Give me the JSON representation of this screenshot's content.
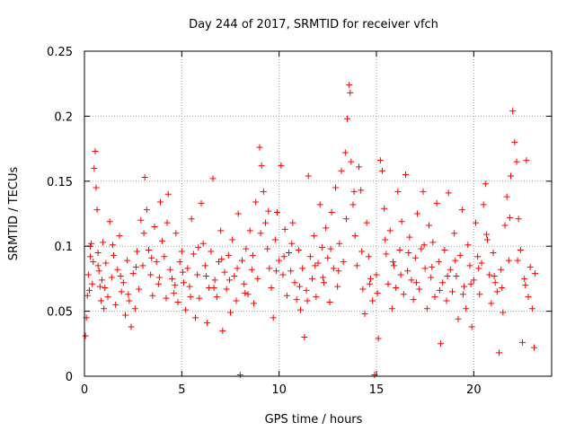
{
  "chart_data": {
    "type": "scatter",
    "title": "Day 244 of 2017, SRMTID for receiver vfch",
    "xlabel": "GPS time / hours",
    "ylabel": "SRMTID / TECUs",
    "xlim": [
      0,
      24
    ],
    "ylim": [
      0,
      0.25
    ],
    "xticks": [
      0,
      5,
      10,
      15,
      20
    ],
    "xtick_labels": [
      "0",
      "5",
      "10",
      "15",
      "20"
    ],
    "yticks": [
      0,
      0.05,
      0.1,
      0.15,
      0.2,
      0.25
    ],
    "ytick_labels": [
      "0",
      "0.05",
      "0.1",
      "0.15",
      "0.2",
      "0.25"
    ],
    "grid": true,
    "marker": "+",
    "color": "#ff0000",
    "series": [
      {
        "name": "SRMTID",
        "points": [
          [
            0.05,
            0.031
          ],
          [
            0.1,
            0.045
          ],
          [
            0.15,
            0.062
          ],
          [
            0.2,
            0.078
          ],
          [
            0.25,
            0.066
          ],
          [
            0.3,
            0.092
          ],
          [
            0.35,
            0.102
          ],
          [
            0.4,
            0.071
          ],
          [
            0.45,
            0.088
          ],
          [
            0.5,
            0.16
          ],
          [
            0.55,
            0.173
          ],
          [
            0.6,
            0.145
          ],
          [
            0.65,
            0.128
          ],
          [
            0.7,
            0.095
          ],
          [
            0.75,
            0.081
          ],
          [
            0.8,
            0.069
          ],
          [
            0.85,
            0.058
          ],
          [
            0.9,
            0.074
          ],
          [
            0.95,
            0.103
          ],
          [
            1.0,
            0.052
          ],
          [
            1.1,
            0.087
          ],
          [
            1.2,
            0.061
          ],
          [
            1.3,
            0.119
          ],
          [
            1.4,
            0.076
          ],
          [
            1.5,
            0.093
          ],
          [
            1.6,
            0.055
          ],
          [
            1.7,
            0.082
          ],
          [
            1.8,
            0.108
          ],
          [
            1.9,
            0.065
          ],
          [
            2.0,
            0.072
          ],
          [
            2.1,
            0.047
          ],
          [
            2.2,
            0.089
          ],
          [
            2.3,
            0.058
          ],
          [
            2.4,
            0.038
          ],
          [
            2.5,
            0.079
          ],
          [
            2.6,
            0.052
          ],
          [
            2.7,
            0.096
          ],
          [
            2.8,
            0.067
          ],
          [
            2.9,
            0.12
          ],
          [
            3.0,
            0.085
          ],
          [
            3.1,
            0.153
          ],
          [
            3.2,
            0.128
          ],
          [
            3.3,
            0.097
          ],
          [
            3.4,
            0.078
          ],
          [
            3.5,
            0.062
          ],
          [
            3.6,
            0.115
          ],
          [
            3.7,
            0.088
          ],
          [
            3.8,
            0.071
          ],
          [
            3.9,
            0.134
          ],
          [
            4.0,
            0.104
          ],
          [
            4.1,
            0.092
          ],
          [
            4.2,
            0.06
          ],
          [
            4.3,
            0.14
          ],
          [
            4.4,
            0.082
          ],
          [
            4.5,
            0.075
          ],
          [
            4.6,
            0.064
          ],
          [
            4.7,
            0.11
          ],
          [
            4.8,
            0.057
          ],
          [
            4.9,
            0.088
          ],
          [
            5.0,
            0.096
          ],
          [
            5.1,
            0.072
          ],
          [
            5.2,
            0.051
          ],
          [
            5.3,
            0.083
          ],
          [
            5.4,
            0.069
          ],
          [
            5.5,
            0.121
          ],
          [
            5.6,
            0.094
          ],
          [
            5.7,
            0.045
          ],
          [
            5.8,
            0.078
          ],
          [
            5.9,
            0.06
          ],
          [
            6.0,
            0.133
          ],
          [
            6.1,
            0.102
          ],
          [
            6.2,
            0.085
          ],
          [
            6.3,
            0.041
          ],
          [
            6.4,
            0.068
          ],
          [
            6.5,
            0.096
          ],
          [
            6.6,
            0.152
          ],
          [
            6.7,
            0.074
          ],
          [
            6.8,
            0.061
          ],
          [
            6.9,
            0.088
          ],
          [
            7.0,
            0.112
          ],
          [
            7.1,
            0.035
          ],
          [
            7.2,
            0.08
          ],
          [
            7.3,
            0.067
          ],
          [
            7.4,
            0.093
          ],
          [
            7.5,
            0.049
          ],
          [
            7.6,
            0.105
          ],
          [
            7.7,
            0.077
          ],
          [
            7.8,
            0.058
          ],
          [
            7.9,
            0.125
          ],
          [
            8.0,
            0.001
          ],
          [
            8.1,
            0.089
          ],
          [
            8.2,
            0.071
          ],
          [
            8.3,
            0.098
          ],
          [
            8.4,
            0.063
          ],
          [
            8.5,
            0.112
          ],
          [
            8.6,
            0.082
          ],
          [
            8.7,
            0.056
          ],
          [
            8.8,
            0.134
          ],
          [
            8.9,
            0.075
          ],
          [
            9.0,
            0.176
          ],
          [
            9.1,
            0.162
          ],
          [
            9.2,
            0.142
          ],
          [
            9.3,
            0.118
          ],
          [
            9.4,
            0.098
          ],
          [
            9.5,
            0.083
          ],
          [
            9.6,
            0.068
          ],
          [
            9.7,
            0.045
          ],
          [
            9.8,
            0.105
          ],
          [
            9.9,
            0.126
          ],
          [
            10.0,
            0.089
          ],
          [
            10.1,
            0.162
          ],
          [
            10.2,
            0.078
          ],
          [
            10.3,
            0.113
          ],
          [
            10.4,
            0.062
          ],
          [
            10.5,
            0.095
          ],
          [
            10.6,
            0.081
          ],
          [
            10.7,
            0.118
          ],
          [
            10.8,
            0.072
          ],
          [
            10.9,
            0.059
          ],
          [
            11.0,
            0.097
          ],
          [
            11.1,
            0.051
          ],
          [
            11.2,
            0.083
          ],
          [
            11.3,
            0.03
          ],
          [
            11.4,
            0.066
          ],
          [
            11.5,
            0.154
          ],
          [
            11.6,
            0.092
          ],
          [
            11.7,
            0.075
          ],
          [
            11.8,
            0.108
          ],
          [
            11.9,
            0.061
          ],
          [
            12.0,
            0.087
          ],
          [
            12.1,
            0.132
          ],
          [
            12.2,
            0.099
          ],
          [
            12.3,
            0.072
          ],
          [
            12.4,
            0.114
          ],
          [
            12.5,
            0.091
          ],
          [
            12.6,
            0.057
          ],
          [
            12.7,
            0.126
          ],
          [
            12.8,
            0.083
          ],
          [
            12.9,
            0.145
          ],
          [
            13.0,
            0.069
          ],
          [
            13.1,
            0.102
          ],
          [
            13.2,
            0.158
          ],
          [
            13.3,
            0.088
          ],
          [
            13.4,
            0.172
          ],
          [
            13.5,
            0.198
          ],
          [
            13.6,
            0.224
          ],
          [
            13.65,
            0.218
          ],
          [
            13.7,
            0.165
          ],
          [
            13.8,
            0.132
          ],
          [
            13.9,
            0.108
          ],
          [
            14.0,
            0.085
          ],
          [
            14.1,
            0.161
          ],
          [
            14.2,
            0.143
          ],
          [
            14.3,
            0.067
          ],
          [
            14.4,
            0.048
          ],
          [
            14.5,
            0.118
          ],
          [
            14.6,
            0.092
          ],
          [
            14.7,
            0.075
          ],
          [
            14.8,
            0.058
          ],
          [
            14.9,
            0.001
          ],
          [
            15.0,
            0.078
          ],
          [
            15.1,
            0.029
          ],
          [
            15.2,
            0.166
          ],
          [
            15.3,
            0.158
          ],
          [
            15.4,
            0.129
          ],
          [
            15.5,
            0.094
          ],
          [
            15.6,
            0.071
          ],
          [
            15.7,
            0.112
          ],
          [
            15.8,
            0.052
          ],
          [
            15.9,
            0.085
          ],
          [
            16.0,
            0.068
          ],
          [
            16.1,
            0.142
          ],
          [
            16.2,
            0.097
          ],
          [
            16.3,
            0.119
          ],
          [
            16.4,
            0.063
          ],
          [
            16.5,
            0.155
          ],
          [
            16.6,
            0.081
          ],
          [
            16.7,
            0.107
          ],
          [
            16.8,
            0.074
          ],
          [
            16.9,
            0.059
          ],
          [
            17.0,
            0.091
          ],
          [
            17.1,
            0.125
          ],
          [
            17.2,
            0.067
          ],
          [
            17.3,
            0.098
          ],
          [
            17.4,
            0.142
          ],
          [
            17.5,
            0.083
          ],
          [
            17.6,
            0.052
          ],
          [
            17.7,
            0.116
          ],
          [
            17.8,
            0.076
          ],
          [
            17.9,
            0.103
          ],
          [
            18.0,
            0.061
          ],
          [
            18.1,
            0.133
          ],
          [
            18.2,
            0.088
          ],
          [
            18.3,
            0.025
          ],
          [
            18.4,
            0.072
          ],
          [
            18.5,
            0.097
          ],
          [
            18.6,
            0.058
          ],
          [
            18.7,
            0.141
          ],
          [
            18.8,
            0.082
          ],
          [
            18.9,
            0.065
          ],
          [
            19.0,
            0.11
          ],
          [
            19.1,
            0.077
          ],
          [
            19.2,
            0.044
          ],
          [
            19.3,
            0.093
          ],
          [
            19.4,
            0.128
          ],
          [
            19.5,
            0.069
          ],
          [
            19.6,
            0.052
          ],
          [
            19.7,
            0.101
          ],
          [
            19.8,
            0.085
          ],
          [
            19.9,
            0.038
          ],
          [
            20.0,
            0.074
          ],
          [
            20.1,
            0.118
          ],
          [
            20.2,
            0.092
          ],
          [
            20.3,
            0.063
          ],
          [
            20.4,
            0.087
          ],
          [
            20.5,
            0.132
          ],
          [
            20.6,
            0.148
          ],
          [
            20.7,
            0.105
          ],
          [
            20.8,
            0.078
          ],
          [
            20.9,
            0.056
          ],
          [
            21.0,
            0.095
          ],
          [
            21.1,
            0.072
          ],
          [
            21.2,
            0.065
          ],
          [
            21.3,
            0.018
          ],
          [
            21.4,
            0.082
          ],
          [
            21.5,
            0.049
          ],
          [
            21.6,
            0.116
          ],
          [
            21.7,
            0.138
          ],
          [
            21.8,
            0.089
          ],
          [
            21.9,
            0.154
          ],
          [
            22.0,
            0.204
          ],
          [
            22.1,
            0.18
          ],
          [
            22.2,
            0.165
          ],
          [
            22.3,
            0.121
          ],
          [
            22.4,
            0.097
          ],
          [
            22.5,
            0.026
          ],
          [
            22.6,
            0.075
          ],
          [
            22.7,
            0.166
          ],
          [
            22.8,
            0.061
          ],
          [
            22.9,
            0.084
          ],
          [
            23.0,
            0.052
          ],
          [
            23.1,
            0.022
          ],
          [
            23.15,
            0.079
          ],
          [
            0.3,
            0.1
          ],
          [
            0.7,
            0.085
          ],
          [
            1.05,
            0.068
          ],
          [
            1.45,
            0.101
          ],
          [
            1.85,
            0.077
          ],
          [
            2.25,
            0.063
          ],
          [
            2.65,
            0.084
          ],
          [
            3.05,
            0.11
          ],
          [
            3.45,
            0.091
          ],
          [
            3.85,
            0.076
          ],
          [
            4.25,
            0.118
          ],
          [
            4.65,
            0.07
          ],
          [
            5.05,
            0.08
          ],
          [
            5.45,
            0.061
          ],
          [
            5.85,
            0.099
          ],
          [
            6.25,
            0.077
          ],
          [
            6.65,
            0.068
          ],
          [
            7.05,
            0.09
          ],
          [
            7.45,
            0.074
          ],
          [
            7.85,
            0.083
          ],
          [
            8.25,
            0.064
          ],
          [
            8.65,
            0.093
          ],
          [
            9.05,
            0.11
          ],
          [
            9.45,
            0.127
          ],
          [
            9.85,
            0.081
          ],
          [
            10.25,
            0.092
          ],
          [
            10.65,
            0.102
          ],
          [
            11.05,
            0.069
          ],
          [
            11.45,
            0.058
          ],
          [
            11.85,
            0.085
          ],
          [
            12.25,
            0.076
          ],
          [
            12.65,
            0.098
          ],
          [
            13.05,
            0.081
          ],
          [
            13.45,
            0.121
          ],
          [
            13.85,
            0.142
          ],
          [
            14.25,
            0.096
          ],
          [
            14.65,
            0.071
          ],
          [
            15.05,
            0.064
          ],
          [
            15.45,
            0.105
          ],
          [
            15.85,
            0.088
          ],
          [
            16.25,
            0.078
          ],
          [
            16.65,
            0.095
          ],
          [
            17.05,
            0.072
          ],
          [
            17.45,
            0.101
          ],
          [
            17.85,
            0.084
          ],
          [
            18.25,
            0.066
          ],
          [
            18.65,
            0.077
          ],
          [
            19.05,
            0.089
          ],
          [
            19.45,
            0.063
          ],
          [
            19.85,
            0.071
          ],
          [
            20.25,
            0.083
          ],
          [
            20.65,
            0.109
          ],
          [
            21.05,
            0.077
          ],
          [
            21.45,
            0.068
          ],
          [
            21.85,
            0.122
          ],
          [
            22.25,
            0.089
          ],
          [
            22.65,
            0.07
          ]
        ]
      }
    ]
  }
}
